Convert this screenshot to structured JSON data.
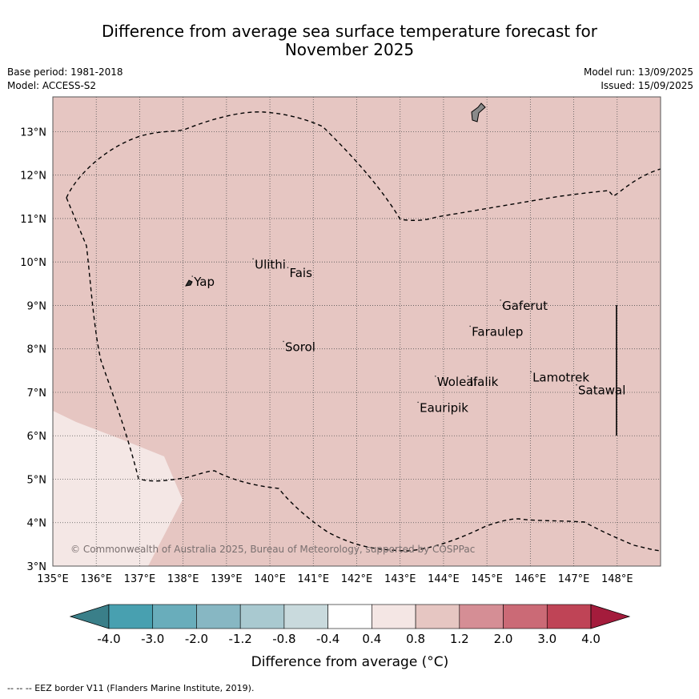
{
  "title": {
    "line1": "Difference from average sea surface temperature forecast for",
    "line2": "November 2025"
  },
  "meta": {
    "base_period": "Base period: 1981-2018",
    "model": "Model: ACCESS-S2",
    "model_run": "Model run: 13/09/2025",
    "issued": "Issued: 15/09/2025"
  },
  "map": {
    "lon_range": [
      135,
      149
    ],
    "lat_range": [
      3,
      13.8
    ],
    "lon_ticks": [
      {
        "value": 135,
        "label": "135°E"
      },
      {
        "value": 136,
        "label": "136°E"
      },
      {
        "value": 137,
        "label": "137°E"
      },
      {
        "value": 138,
        "label": "138°E"
      },
      {
        "value": 139,
        "label": "139°E"
      },
      {
        "value": 140,
        "label": "140°E"
      },
      {
        "value": 141,
        "label": "141°E"
      },
      {
        "value": 142,
        "label": "142°E"
      },
      {
        "value": 143,
        "label": "143°E"
      },
      {
        "value": 144,
        "label": "144°E"
      },
      {
        "value": 145,
        "label": "145°E"
      },
      {
        "value": 146,
        "label": "146°E"
      },
      {
        "value": 147,
        "label": "147°E"
      },
      {
        "value": 148,
        "label": "148°E"
      }
    ],
    "lat_ticks": [
      {
        "value": 3,
        "label": "3°N"
      },
      {
        "value": 4,
        "label": "4°N"
      },
      {
        "value": 5,
        "label": "5°N"
      },
      {
        "value": 6,
        "label": "6°N"
      },
      {
        "value": 7,
        "label": "7°N"
      },
      {
        "value": 8,
        "label": "8°N"
      },
      {
        "value": 9,
        "label": "9°N"
      },
      {
        "value": 10,
        "label": "10°N"
      },
      {
        "value": 11,
        "label": "11°N"
      },
      {
        "value": 12,
        "label": "12°N"
      },
      {
        "value": 13,
        "label": "13°N"
      }
    ],
    "background_color": "#e6c6c2",
    "cool_region_color": "#f4e7e5",
    "places": [
      {
        "name": "Yap",
        "lon": 138.25,
        "lat": 9.45
      },
      {
        "name": "Ulithi",
        "lon": 139.65,
        "lat": 9.85
      },
      {
        "name": "Fais",
        "lon": 140.45,
        "lat": 9.65
      },
      {
        "name": "Gaferut",
        "lon": 145.35,
        "lat": 8.9
      },
      {
        "name": "Faraulep",
        "lon": 144.65,
        "lat": 8.3
      },
      {
        "name": "Sorol",
        "lon": 140.35,
        "lat": 7.95
      },
      {
        "name": "Woleai",
        "lon": 143.85,
        "lat": 7.15
      },
      {
        "name": "Ifalik",
        "lon": 144.6,
        "lat": 7.15
      },
      {
        "name": "Lamotrek",
        "lon": 146.05,
        "lat": 7.25
      },
      {
        "name": "Satawal",
        "lon": 147.1,
        "lat": 6.95
      },
      {
        "name": "Eauripik",
        "lon": 143.45,
        "lat": 6.55
      }
    ],
    "copyright": "© Commonwealth of Australia 2025, Bureau of Meteorology, supported by COSPPac"
  },
  "colorbar": {
    "ticks": [
      "-4.0",
      "-3.0",
      "-2.0",
      "-1.2",
      "-0.8",
      "-0.4",
      "0.4",
      "0.8",
      "1.2",
      "2.0",
      "3.0",
      "4.0"
    ],
    "colors": [
      "#3a7f89",
      "#48a0b0",
      "#69adbb",
      "#87b7c3",
      "#a9c9d0",
      "#c9dadd",
      "#ffffff",
      "#f4e6e4",
      "#e6c6c2",
      "#d58e95",
      "#cb6a76",
      "#bf4456",
      "#a41c3c"
    ],
    "label": "Difference from average (°C)"
  },
  "footnote": "-- -- -- EEZ border V11 (Flanders Marine Institute, 2019)."
}
